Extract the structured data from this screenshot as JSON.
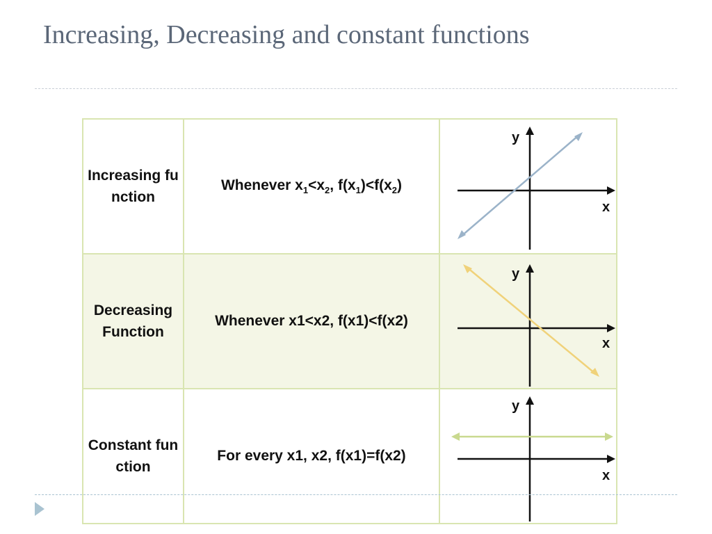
{
  "slide": {
    "title": "Increasing, Decreasing and constant functions"
  },
  "rows": [
    {
      "name": "Increasing function",
      "rule": {
        "p1": "Whenever x",
        "s1": "1",
        "p2": "<x",
        "s2": "2",
        "p3": ", f(x",
        "s3": "1",
        "p4": ")<f(x",
        "s4": "2",
        "p5": ")"
      },
      "graph": {
        "y_label": "y",
        "x_label": "x",
        "line_color": "#9bb3c9"
      }
    },
    {
      "name": "Decreasing Function",
      "rule_text": "Whenever x1<x2, f(x1)<f(x2)",
      "graph": {
        "y_label": "y",
        "x_label": "x",
        "line_color": "#f0d27a"
      }
    },
    {
      "name": "Constant function",
      "rule_text": "For every x1, x2, f(x1)=f(x2)",
      "graph": {
        "y_label": "y",
        "x_label": "x",
        "line_color": "#c9d98f"
      }
    }
  ]
}
